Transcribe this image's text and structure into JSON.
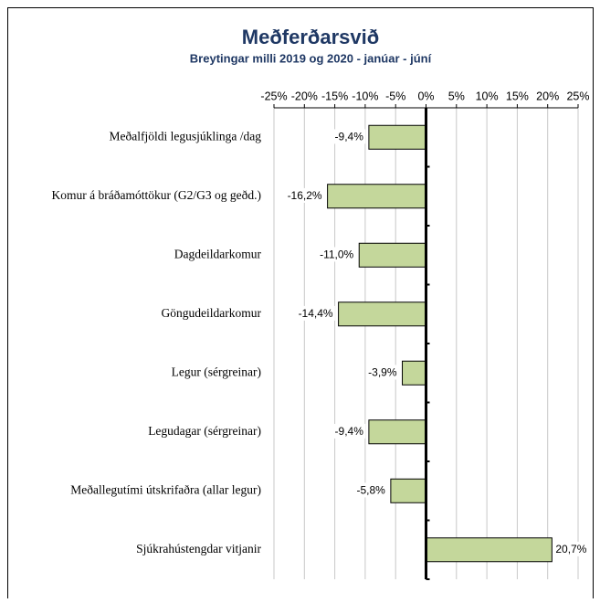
{
  "chart_data": {
    "type": "bar",
    "orientation": "horizontal",
    "title": "Meðferðarsvið",
    "subtitle": "Breytingar milli 2019 og 2020 - janúar - júní",
    "categories": [
      "Meðalfjöldi legusjúklinga /dag",
      "Komur á bráðamóttökur (G2/G3 og geðd.)",
      "Dagdeildarkomur",
      "Göngudeildarkomur",
      "Legur (sérgreinar)",
      "Legudagar (sérgreinar)",
      "Meðallegutími útskrifaðra (allar legur)",
      "Sjúkrahústengdar vitjanir"
    ],
    "values": [
      -9.4,
      -16.2,
      -11.0,
      -14.4,
      -3.9,
      -9.4,
      -5.8,
      20.7
    ],
    "value_labels": [
      "-9,4%",
      "-16,2%",
      "-11,0%",
      "-14,4%",
      "-3,9%",
      "-9,4%",
      "-5,8%",
      "20,7%"
    ],
    "color": "#c4d79b",
    "xlim": [
      -25,
      25
    ],
    "xticks": [
      {
        "value": -25,
        "label": "-25%"
      },
      {
        "value": -20,
        "label": "-20%"
      },
      {
        "value": -15,
        "label": "-15%"
      },
      {
        "value": -10,
        "label": "-10%"
      },
      {
        "value": -5,
        "label": "-5%"
      },
      {
        "value": 0,
        "label": "0%"
      },
      {
        "value": 5,
        "label": "5%"
      },
      {
        "value": 10,
        "label": "10%"
      },
      {
        "value": 15,
        "label": "15%"
      },
      {
        "value": 20,
        "label": "20%"
      },
      {
        "value": 25,
        "label": "25%"
      }
    ],
    "grid": true
  }
}
